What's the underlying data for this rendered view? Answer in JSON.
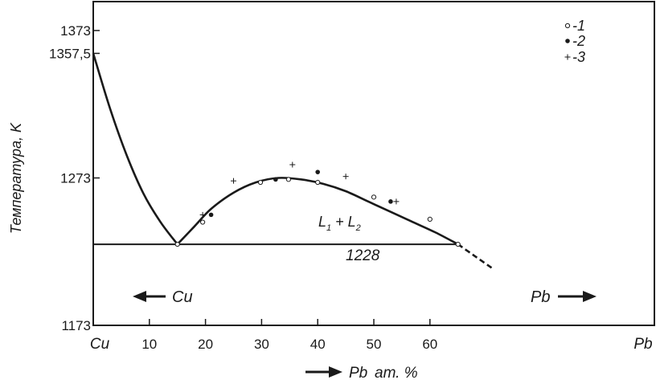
{
  "chart_data": {
    "type": "line",
    "xlim": [
      0,
      100
    ],
    "ylim": [
      1173,
      1373
    ],
    "x_ticks": [
      0,
      10,
      20,
      30,
      40,
      50,
      60,
      100
    ],
    "x_tick_labels": [
      "Cu",
      "10",
      "20",
      "30",
      "40",
      "50",
      "60",
      "Pb"
    ],
    "y_ticks": [
      1173,
      1273,
      1357.5,
      1373
    ],
    "y_tick_labels": [
      "1173",
      "1273",
      "1357,5",
      "1373"
    ],
    "ylabel": "Температура, K",
    "xlabel": {
      "element": "Pb",
      "unit": "ат. %"
    },
    "monotectic_line": {
      "y": 1228,
      "x_start": 0,
      "x_end": 65,
      "label": "1228"
    },
    "region_label": {
      "main": "L",
      "sub1": "1",
      "plus": " + L",
      "sub2": "2"
    },
    "arrow_labels": {
      "left": "Cu",
      "right": "Pb"
    },
    "series": [
      {
        "name": "liquidus",
        "style": "solid",
        "x": [
          0,
          3,
          6,
          9,
          12,
          15
        ],
        "y": [
          1357.5,
          1320,
          1288,
          1262,
          1243,
          1228
        ]
      },
      {
        "name": "miscibility-gap",
        "style": "solid",
        "x": [
          15,
          18,
          21,
          25,
          29,
          33,
          37,
          41,
          45,
          49,
          53,
          57,
          61,
          65
        ],
        "y": [
          1228,
          1240,
          1252,
          1263,
          1270,
          1273,
          1272,
          1269,
          1264,
          1257,
          1250,
          1243,
          1236,
          1228
        ]
      },
      {
        "name": "extrapolation",
        "style": "dashed",
        "x": [
          65,
          68,
          71
        ],
        "y": [
          1228,
          1220,
          1212
        ]
      }
    ],
    "points": [
      {
        "marker": "open",
        "x": [
          15,
          19.5,
          29.8,
          34.8,
          40,
          50,
          60,
          65
        ],
        "y": [
          1228,
          1243,
          1270,
          1272,
          1270,
          1260,
          1245,
          1228
        ]
      },
      {
        "marker": "filled",
        "x": [
          21,
          32.5,
          40,
          53
        ],
        "y": [
          1248,
          1272,
          1277,
          1257
        ]
      },
      {
        "marker": "plus",
        "x": [
          19.5,
          25,
          35.5,
          45,
          54
        ],
        "y": [
          1248,
          1271,
          1282,
          1274,
          1257
        ]
      }
    ],
    "legend": {
      "position": "top-right",
      "entries": [
        {
          "marker": "open",
          "label": "-1"
        },
        {
          "marker": "filled",
          "label": "-2"
        },
        {
          "marker": "plus",
          "label": "-3"
        }
      ]
    }
  }
}
